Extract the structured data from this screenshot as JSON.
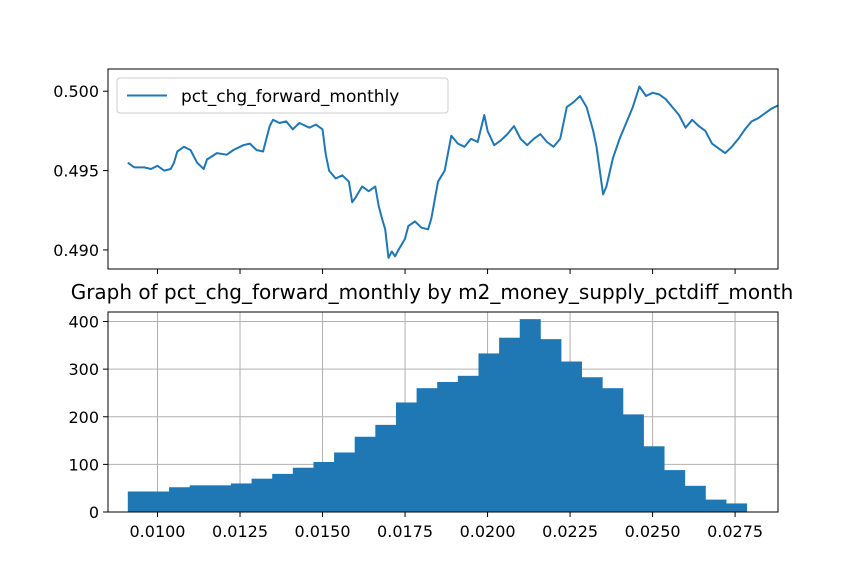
{
  "chart_data": [
    {
      "type": "line",
      "title": "",
      "xlabel": "",
      "ylabel": "",
      "ylim": [
        0.4888,
        0.5014
      ],
      "yticks": [
        "0.490",
        "0.495",
        "0.500"
      ],
      "grid": false,
      "legend": {
        "placement": "upper-left",
        "entries": [
          "pct_chg_forward_monthly"
        ]
      },
      "color": "#1f77b4",
      "x_range": [
        0.0085,
        0.0288
      ],
      "series": [
        {
          "name": "pct_chg_forward_monthly",
          "points": [
            [
              0.0091,
              0.4955
            ],
            [
              0.0093,
              0.4952
            ],
            [
              0.0096,
              0.4952
            ],
            [
              0.0098,
              0.4951
            ],
            [
              0.01,
              0.4953
            ],
            [
              0.0102,
              0.495
            ],
            [
              0.0104,
              0.4951
            ],
            [
              0.0105,
              0.4955
            ],
            [
              0.0106,
              0.4962
            ],
            [
              0.0108,
              0.4965
            ],
            [
              0.011,
              0.4963
            ],
            [
              0.0112,
              0.4955
            ],
            [
              0.0114,
              0.4951
            ],
            [
              0.0115,
              0.4957
            ],
            [
              0.0118,
              0.4961
            ],
            [
              0.0121,
              0.496
            ],
            [
              0.0123,
              0.4963
            ],
            [
              0.0126,
              0.4966
            ],
            [
              0.0128,
              0.4967
            ],
            [
              0.013,
              0.4963
            ],
            [
              0.0132,
              0.4962
            ],
            [
              0.0133,
              0.497
            ],
            [
              0.0134,
              0.4978
            ],
            [
              0.0135,
              0.4982
            ],
            [
              0.0137,
              0.498
            ],
            [
              0.0139,
              0.4981
            ],
            [
              0.0141,
              0.4976
            ],
            [
              0.0143,
              0.498
            ],
            [
              0.0146,
              0.4977
            ],
            [
              0.0148,
              0.4979
            ],
            [
              0.015,
              0.4976
            ],
            [
              0.0151,
              0.496
            ],
            [
              0.0152,
              0.495
            ],
            [
              0.0154,
              0.4945
            ],
            [
              0.0156,
              0.4947
            ],
            [
              0.0158,
              0.4943
            ],
            [
              0.0159,
              0.493
            ],
            [
              0.016,
              0.4933
            ],
            [
              0.0162,
              0.494
            ],
            [
              0.0164,
              0.4937
            ],
            [
              0.0166,
              0.494
            ],
            [
              0.0167,
              0.4928
            ],
            [
              0.0168,
              0.492
            ],
            [
              0.0169,
              0.4913
            ],
            [
              0.017,
              0.4895
            ],
            [
              0.0171,
              0.4899
            ],
            [
              0.0172,
              0.4896
            ],
            [
              0.0173,
              0.49
            ],
            [
              0.0175,
              0.4907
            ],
            [
              0.0176,
              0.4915
            ],
            [
              0.0178,
              0.4918
            ],
            [
              0.018,
              0.4914
            ],
            [
              0.0182,
              0.4913
            ],
            [
              0.0183,
              0.492
            ],
            [
              0.0185,
              0.4943
            ],
            [
              0.0187,
              0.495
            ],
            [
              0.0189,
              0.4972
            ],
            [
              0.0191,
              0.4967
            ],
            [
              0.0193,
              0.4965
            ],
            [
              0.0195,
              0.497
            ],
            [
              0.0197,
              0.4968
            ],
            [
              0.0199,
              0.4985
            ],
            [
              0.02,
              0.4975
            ],
            [
              0.0202,
              0.4966
            ],
            [
              0.0204,
              0.4969
            ],
            [
              0.0206,
              0.4973
            ],
            [
              0.0208,
              0.4978
            ],
            [
              0.021,
              0.497
            ],
            [
              0.0212,
              0.4966
            ],
            [
              0.0214,
              0.497
            ],
            [
              0.0216,
              0.4973
            ],
            [
              0.0218,
              0.4968
            ],
            [
              0.022,
              0.4965
            ],
            [
              0.0222,
              0.497
            ],
            [
              0.0224,
              0.499
            ],
            [
              0.0226,
              0.4993
            ],
            [
              0.0228,
              0.4997
            ],
            [
              0.023,
              0.499
            ],
            [
              0.0232,
              0.4975
            ],
            [
              0.0233,
              0.4965
            ],
            [
              0.0234,
              0.495
            ],
            [
              0.0235,
              0.4935
            ],
            [
              0.0236,
              0.494
            ],
            [
              0.0238,
              0.4958
            ],
            [
              0.024,
              0.497
            ],
            [
              0.0242,
              0.498
            ],
            [
              0.0244,
              0.499
            ],
            [
              0.0246,
              0.5003
            ],
            [
              0.0248,
              0.4997
            ],
            [
              0.025,
              0.4999
            ],
            [
              0.0252,
              0.4998
            ],
            [
              0.0254,
              0.4995
            ],
            [
              0.0256,
              0.499
            ],
            [
              0.0258,
              0.4985
            ],
            [
              0.026,
              0.4977
            ],
            [
              0.0262,
              0.4982
            ],
            [
              0.0264,
              0.4978
            ],
            [
              0.0266,
              0.4975
            ],
            [
              0.0268,
              0.4967
            ],
            [
              0.027,
              0.4964
            ],
            [
              0.0272,
              0.4961
            ],
            [
              0.0274,
              0.4965
            ],
            [
              0.0276,
              0.497
            ],
            [
              0.0278,
              0.4976
            ],
            [
              0.028,
              0.4981
            ],
            [
              0.0282,
              0.4983
            ],
            [
              0.0284,
              0.4986
            ],
            [
              0.0286,
              0.4989
            ],
            [
              0.0288,
              0.4991
            ]
          ]
        }
      ]
    },
    {
      "type": "bar",
      "title": "Graph of pct_chg_forward_monthly by m2_money_supply_pctdiff_month",
      "xlabel": "",
      "ylabel": "",
      "xlim": [
        0.0085,
        0.0287
      ],
      "ylim": [
        0,
        420
      ],
      "xticks": [
        "0.0100",
        "0.0125",
        "0.0150",
        "0.0175",
        "0.0200",
        "0.0225",
        "0.0250",
        "0.0275"
      ],
      "yticks": [
        "0",
        "100",
        "200",
        "300",
        "400"
      ],
      "grid": true,
      "color": "#1f77b4",
      "bin_start": 0.0091,
      "bin_width": 0.000625,
      "values": [
        43,
        43,
        52,
        56,
        56,
        60,
        70,
        80,
        93,
        105,
        125,
        158,
        183,
        230,
        260,
        273,
        286,
        333,
        366,
        405,
        363,
        316,
        283,
        260,
        205,
        138,
        88,
        55,
        26,
        18
      ]
    }
  ]
}
